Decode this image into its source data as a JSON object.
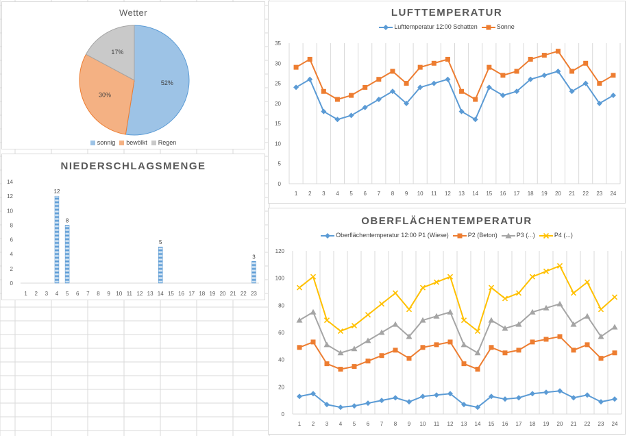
{
  "chart_data": [
    {
      "id": "wetter",
      "type": "pie",
      "title": "Wetter",
      "categories": [
        "sonnig",
        "bewölkt",
        "Regen"
      ],
      "values": [
        52,
        30,
        17
      ],
      "value_labels": [
        "52%",
        "30%",
        "17%"
      ],
      "colors": [
        "#9dc3e6",
        "#f4b183",
        "#c9c9c9"
      ],
      "border_colors": [
        "#5b9bd5",
        "#ed7d31",
        "#a5a5a5"
      ],
      "legend": "bottom"
    },
    {
      "id": "niederschlag",
      "type": "bar",
      "title": "NIEDERSCHLAGSMENGE",
      "categories": [
        "1",
        "2",
        "3",
        "4",
        "5",
        "6",
        "7",
        "8",
        "9",
        "10",
        "11",
        "12",
        "13",
        "14",
        "15",
        "16",
        "17",
        "18",
        "19",
        "20",
        "21",
        "22",
        "23"
      ],
      "values": [
        0,
        0,
        0,
        12,
        8,
        0,
        0,
        0,
        0,
        0,
        0,
        0,
        0,
        5,
        0,
        0,
        0,
        0,
        0,
        0,
        0,
        0,
        3
      ],
      "data_labels": {
        "4": "12",
        "5": "8",
        "14": "5",
        "23": "3"
      },
      "ylim": [
        0,
        14
      ],
      "yticks": [
        "0",
        "2",
        "4",
        "6",
        "8",
        "10",
        "12",
        "14"
      ],
      "color": "#5b9bd5",
      "grid": false
    },
    {
      "id": "lufttemperatur",
      "type": "line",
      "title": "LUFTTEMPERATUR",
      "categories": [
        "1",
        "2",
        "3",
        "4",
        "5",
        "6",
        "7",
        "8",
        "9",
        "10",
        "11",
        "12",
        "13",
        "14",
        "15",
        "16",
        "17",
        "18",
        "19",
        "20",
        "21",
        "22",
        "23",
        "24"
      ],
      "series": [
        {
          "name": "Lufttemperatur 12:00 Schatten",
          "color": "#5b9bd5",
          "marker": "diamond",
          "values": [
            24,
            26,
            18,
            16,
            17,
            19,
            21,
            23,
            20,
            24,
            25,
            26,
            18,
            16,
            24,
            22,
            23,
            26,
            27,
            28,
            23,
            25,
            20,
            22
          ]
        },
        {
          "name": "Sonne",
          "color": "#ed7d31",
          "marker": "square",
          "values": [
            29,
            31,
            23,
            21,
            22,
            24,
            26,
            28,
            25,
            29,
            30,
            31,
            23,
            21,
            29,
            27,
            28,
            31,
            32,
            33,
            28,
            30,
            25,
            27
          ]
        }
      ],
      "ylim": [
        0,
        35
      ],
      "yticks": [
        "0",
        "5",
        "10",
        "15",
        "20",
        "25",
        "30",
        "35"
      ],
      "legend": "top",
      "grid": "vertical"
    },
    {
      "id": "oberflaechentemperatur",
      "type": "line",
      "title": "OBERFLÄCHENTEMPERATUR",
      "categories": [
        "1",
        "2",
        "3",
        "4",
        "5",
        "6",
        "7",
        "8",
        "9",
        "10",
        "11",
        "12",
        "13",
        "14",
        "15",
        "16",
        "17",
        "18",
        "19",
        "20",
        "21",
        "22",
        "23",
        "24"
      ],
      "series": [
        {
          "name": "Oberflächentemperatur 12:00 P1 (Wiese)",
          "color": "#5b9bd5",
          "marker": "diamond",
          "values": [
            13,
            15,
            7,
            5,
            6,
            8,
            10,
            12,
            9,
            13,
            14,
            15,
            7,
            5,
            13,
            11,
            12,
            15,
            16,
            17,
            12,
            14,
            9,
            11
          ]
        },
        {
          "name": "P2 (Beton)",
          "color": "#ed7d31",
          "marker": "square",
          "values": [
            49,
            53,
            37,
            33,
            35,
            39,
            43,
            47,
            41,
            49,
            51,
            53,
            37,
            33,
            49,
            45,
            47,
            53,
            55,
            57,
            47,
            51,
            41,
            45
          ]
        },
        {
          "name": "P3 (...)",
          "color": "#a5a5a5",
          "marker": "triangle",
          "values": [
            69,
            75,
            51,
            45,
            48,
            54,
            60,
            66,
            57,
            69,
            72,
            75,
            51,
            45,
            69,
            63,
            66,
            75,
            78,
            81,
            66,
            72,
            57,
            64
          ]
        },
        {
          "name": "P4 (...)",
          "color": "#ffc000",
          "marker": "x",
          "values": [
            93,
            101,
            69,
            61,
            65,
            73,
            81,
            89,
            77,
            93,
            97,
            101,
            69,
            61,
            93,
            85,
            89,
            101,
            105,
            109,
            89,
            97,
            77,
            86
          ]
        }
      ],
      "ylim": [
        0,
        120
      ],
      "yticks": [
        "0",
        "20",
        "40",
        "60",
        "80",
        "100",
        "120"
      ],
      "legend": "top",
      "grid": "vertical"
    }
  ]
}
